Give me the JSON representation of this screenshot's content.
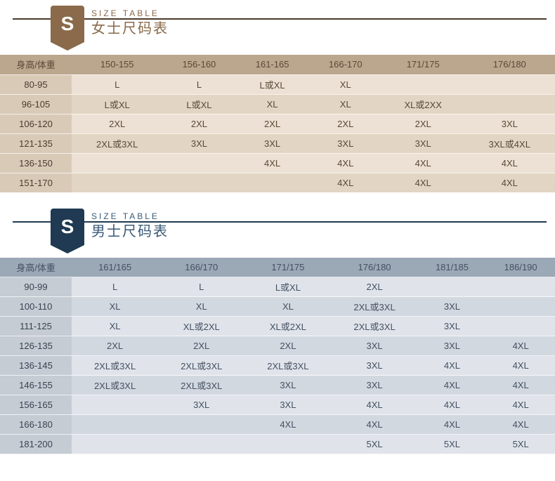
{
  "women": {
    "badge_letter": "S",
    "badge_color": "#8a6a4a",
    "title_small": "SIZE TABLE",
    "title_large": "女士尺码表",
    "table": {
      "columns": [
        "身高/体重",
        "150-155",
        "156-160",
        "161-165",
        "166-170",
        "171/175",
        "176/180"
      ],
      "rows": [
        [
          "80-95",
          "L",
          "L",
          "L或XL",
          "XL",
          "",
          ""
        ],
        [
          "96-105",
          "L或XL",
          "L或XL",
          "XL",
          "XL",
          "XL或2XX",
          ""
        ],
        [
          "106-120",
          "2XL",
          "2XL",
          "2XL",
          "2XL",
          "2XL",
          "3XL"
        ],
        [
          "121-135",
          "2XL或3XL",
          "3XL",
          "3XL",
          "3XL",
          "3XL",
          "3XL或4XL"
        ],
        [
          "136-150",
          "",
          "",
          "4XL",
          "4XL",
          "4XL",
          "4XL"
        ],
        [
          "151-170",
          "",
          "",
          "",
          "4XL",
          "4XL",
          "4XL"
        ]
      ],
      "header_bg": "#bba68e",
      "label_col_bg": "#d9cab8",
      "row_even_bg": "#ece1d4",
      "row_odd_bg": "#e3d5c3",
      "text_color": "#5a4a38"
    }
  },
  "men": {
    "badge_letter": "S",
    "badge_color": "#1f3a52",
    "title_small": "SIZE TABLE",
    "title_large": "男士尺码表",
    "table": {
      "columns": [
        "身高/体重",
        "161/165",
        "166/170",
        "171/175",
        "176/180",
        "181/185",
        "186/190"
      ],
      "rows": [
        [
          "90-99",
          "L",
          "L",
          "L或XL",
          "2XL",
          "",
          ""
        ],
        [
          "100-110",
          "XL",
          "XL",
          "XL",
          "2XL或3XL",
          "3XL",
          ""
        ],
        [
          "111-125",
          "XL",
          "XL或2XL",
          "XL或2XL",
          "2XL或3XL",
          "3XL",
          ""
        ],
        [
          "126-135",
          "2XL",
          "2XL",
          "2XL",
          "3XL",
          "3XL",
          "4XL"
        ],
        [
          "136-145",
          "2XL或3XL",
          "2XL或3XL",
          "2XL或3XL",
          "3XL",
          "4XL",
          "4XL"
        ],
        [
          "146-155",
          "2XL或3XL",
          "2XL或3XL",
          "3XL",
          "3XL",
          "4XL",
          "4XL"
        ],
        [
          "156-165",
          "",
          "3XL",
          "3XL",
          "4XL",
          "4XL",
          "4XL"
        ],
        [
          "166-180",
          "",
          "",
          "4XL",
          "4XL",
          "4XL",
          "4XL"
        ],
        [
          "181-200",
          "",
          "",
          "",
          "5XL",
          "5XL",
          "5XL"
        ]
      ],
      "header_bg": "#9ba8b6",
      "label_col_bg": "#c6ccd4",
      "row_even_bg": "#e0e4ea",
      "row_odd_bg": "#d2d8e0",
      "text_color": "#445062"
    }
  }
}
